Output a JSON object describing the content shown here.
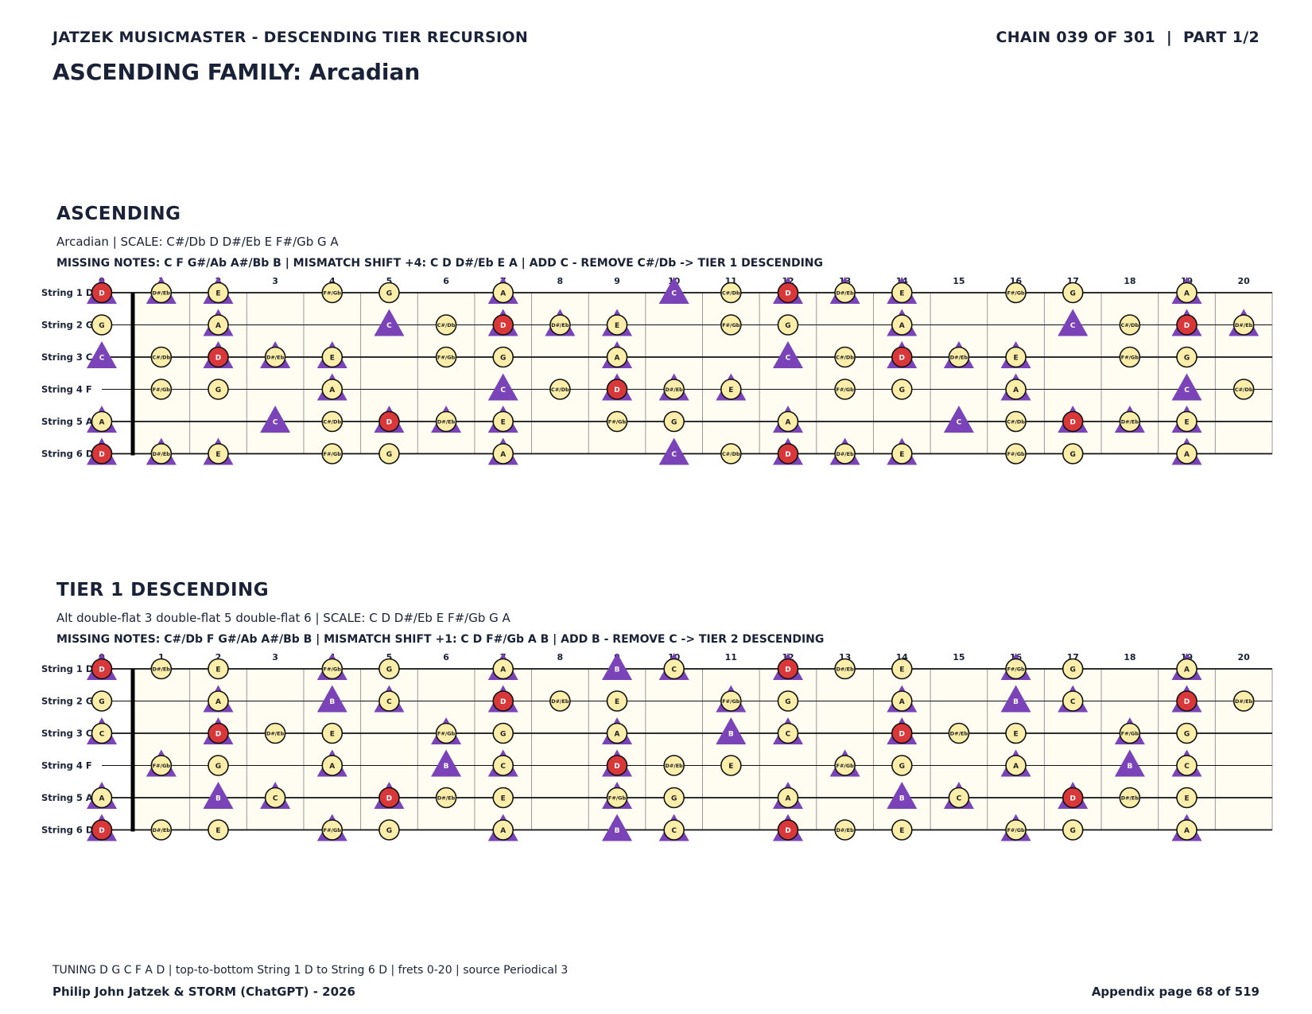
{
  "header": {
    "title": "JATZEK MUSICMASTER - DESCENDING TIER RECURSION",
    "chain": "CHAIN 039 OF 301  |  PART 1/2",
    "family": "ASCENDING FAMILY: Arcadian"
  },
  "colors": {
    "scale": "#fbeeaa",
    "root": "#d8383a",
    "triangle": "#7b43b8",
    "board": "#fffdf2",
    "ink": "#1a2238"
  },
  "strings": [
    {
      "label": "String 1 D",
      "open": "D"
    },
    {
      "label": "String 2 G",
      "open": "G"
    },
    {
      "label": "String 3 C",
      "open": "C"
    },
    {
      "label": "String 4 F",
      "open": "F"
    },
    {
      "label": "String 5 A",
      "open": "A"
    },
    {
      "label": "String 6 D",
      "open": "D"
    }
  ],
  "fret_count": 20,
  "sections": [
    {
      "title": "ASCENDING",
      "subtitle": "Arcadian  |  SCALE: C#/Db D D#/Eb E F#/Gb G A",
      "missing": "MISSING NOTES: C F G#/Ab A#/Bb B  |  MISMATCH SHIFT +4: C D D#/Eb E A  |  ADD C - REMOVE C#/Db -> TIER 1 DESCENDING",
      "root": "D",
      "scale": [
        "C#/Db",
        "D",
        "D#/Eb",
        "E",
        "F#/Gb",
        "G",
        "A"
      ],
      "triangles": [
        "C",
        "D",
        "D#/Eb",
        "E",
        "A"
      ]
    },
    {
      "title": "TIER 1 DESCENDING",
      "subtitle": "Alt double-flat 3 double-flat 5 double-flat 6  |  SCALE: C D D#/Eb E F#/Gb G A",
      "missing": "MISSING NOTES: C#/Db F G#/Ab A#/Bb B  |  MISMATCH SHIFT +1: C D F#/Gb A B  |  ADD B - REMOVE C -> TIER 2 DESCENDING",
      "root": "D",
      "scale": [
        "C",
        "D",
        "D#/Eb",
        "E",
        "F#/Gb",
        "G",
        "A"
      ],
      "triangles": [
        "B",
        "C",
        "D",
        "F#/Gb",
        "A"
      ]
    }
  ],
  "footer": {
    "tuning": "TUNING D G C F A D | top-to-bottom String 1 D to String 6 D | frets 0-20 | source Periodical 3",
    "author": "Philip John Jatzek & STORM (ChatGPT) - 2026",
    "page": "Appendix page 68 of 519"
  }
}
